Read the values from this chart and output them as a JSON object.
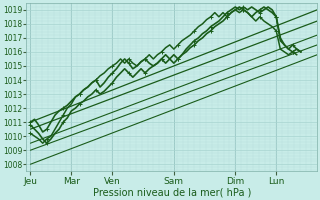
{
  "xlabel": "Pression niveau de la mer( hPa )",
  "bg_color": "#c8ece8",
  "grid_major_color": "#a8d4d0",
  "grid_minor_color": "#b8dedd",
  "line_color": "#1a5c1a",
  "ylim": [
    1007.5,
    1019.5
  ],
  "yticks": [
    1008,
    1009,
    1010,
    1011,
    1012,
    1013,
    1014,
    1015,
    1016,
    1017,
    1018,
    1019
  ],
  "n_days": 6,
  "day_labels": [
    "Jeu",
    "Mar",
    "Ven",
    "Sam",
    "Dim",
    "Lun"
  ],
  "day_x": [
    0.0,
    1.0,
    2.0,
    3.5,
    5.0,
    6.0
  ],
  "vline_x": [
    0.0,
    1.0,
    2.0,
    3.5,
    5.0,
    6.0
  ],
  "xlim": [
    -0.1,
    7.0
  ],
  "figsize": [
    3.2,
    2.0
  ],
  "dpi": 100,
  "smooth_lines": [
    {
      "x0": 0.0,
      "y0": 1011.0,
      "x1": 7.0,
      "y1": 1019.0,
      "lw": 0.9
    },
    {
      "x0": 0.0,
      "y0": 1010.5,
      "x1": 7.0,
      "y1": 1018.2,
      "lw": 0.9
    },
    {
      "x0": 0.0,
      "y0": 1009.5,
      "x1": 7.0,
      "y1": 1017.2,
      "lw": 0.8
    },
    {
      "x0": 0.0,
      "y0": 1009.0,
      "x1": 7.0,
      "y1": 1016.5,
      "lw": 0.8
    },
    {
      "x0": 0.0,
      "y0": 1008.0,
      "x1": 7.0,
      "y1": 1015.8,
      "lw": 0.8
    }
  ],
  "noisy_lines": [
    {
      "pts": [
        [
          0.0,
          1011.0
        ],
        [
          0.1,
          1011.2
        ],
        [
          0.2,
          1010.8
        ],
        [
          0.3,
          1010.3
        ],
        [
          0.4,
          1010.5
        ],
        [
          0.5,
          1011.0
        ],
        [
          0.6,
          1011.5
        ],
        [
          0.7,
          1011.8
        ],
        [
          0.8,
          1012.0
        ],
        [
          0.9,
          1012.2
        ],
        [
          1.0,
          1012.5
        ],
        [
          1.1,
          1012.8
        ],
        [
          1.2,
          1013.0
        ],
        [
          1.3,
          1013.3
        ],
        [
          1.4,
          1013.5
        ],
        [
          1.5,
          1013.8
        ],
        [
          1.6,
          1014.0
        ],
        [
          1.7,
          1013.5
        ],
        [
          1.8,
          1013.8
        ],
        [
          1.9,
          1014.2
        ],
        [
          2.0,
          1014.5
        ],
        [
          2.1,
          1014.8
        ],
        [
          2.2,
          1015.2
        ],
        [
          2.3,
          1015.5
        ],
        [
          2.4,
          1015.2
        ],
        [
          2.5,
          1014.8
        ],
        [
          2.6,
          1015.0
        ],
        [
          2.7,
          1015.3
        ],
        [
          2.8,
          1015.5
        ],
        [
          2.9,
          1015.2
        ],
        [
          3.0,
          1015.0
        ],
        [
          3.1,
          1015.2
        ],
        [
          3.2,
          1015.5
        ],
        [
          3.3,
          1015.8
        ],
        [
          3.4,
          1015.5
        ],
        [
          3.5,
          1015.2
        ],
        [
          3.6,
          1015.5
        ],
        [
          3.7,
          1015.8
        ],
        [
          3.8,
          1016.0
        ],
        [
          3.9,
          1016.3
        ],
        [
          4.0,
          1016.5
        ],
        [
          4.1,
          1016.8
        ],
        [
          4.2,
          1017.0
        ],
        [
          4.3,
          1017.3
        ],
        [
          4.4,
          1017.5
        ],
        [
          4.5,
          1017.8
        ],
        [
          4.6,
          1018.0
        ],
        [
          4.7,
          1018.2
        ],
        [
          4.8,
          1018.5
        ],
        [
          4.9,
          1018.8
        ],
        [
          5.0,
          1019.0
        ],
        [
          5.1,
          1019.2
        ],
        [
          5.2,
          1019.0
        ],
        [
          5.3,
          1018.8
        ],
        [
          5.4,
          1018.5
        ],
        [
          5.5,
          1018.8
        ],
        [
          5.6,
          1019.0
        ],
        [
          5.7,
          1019.2
        ],
        [
          5.8,
          1019.0
        ],
        [
          5.9,
          1018.8
        ],
        [
          6.0,
          1018.5
        ],
        [
          6.1,
          1017.0
        ],
        [
          6.2,
          1016.5
        ],
        [
          6.3,
          1016.2
        ],
        [
          6.4,
          1016.0
        ],
        [
          6.5,
          1016.2
        ],
        [
          6.6,
          1016.0
        ]
      ],
      "lw": 1.2,
      "marker": true
    },
    {
      "pts": [
        [
          0.0,
          1010.8
        ],
        [
          0.1,
          1010.5
        ],
        [
          0.2,
          1010.2
        ],
        [
          0.3,
          1009.8
        ],
        [
          0.4,
          1009.5
        ],
        [
          0.5,
          1009.8
        ],
        [
          0.6,
          1010.2
        ],
        [
          0.7,
          1010.5
        ],
        [
          0.8,
          1011.0
        ],
        [
          0.9,
          1011.3
        ],
        [
          1.0,
          1011.8
        ],
        [
          1.1,
          1012.0
        ],
        [
          1.2,
          1012.3
        ],
        [
          1.3,
          1012.5
        ],
        [
          1.4,
          1012.8
        ],
        [
          1.5,
          1013.0
        ],
        [
          1.6,
          1013.3
        ],
        [
          1.7,
          1013.0
        ],
        [
          1.8,
          1013.2
        ],
        [
          1.9,
          1013.5
        ],
        [
          2.0,
          1013.8
        ],
        [
          2.1,
          1014.2
        ],
        [
          2.2,
          1014.5
        ],
        [
          2.3,
          1014.8
        ],
        [
          2.4,
          1014.5
        ],
        [
          2.5,
          1014.2
        ],
        [
          2.6,
          1014.5
        ],
        [
          2.7,
          1014.8
        ],
        [
          2.8,
          1014.5
        ],
        [
          2.9,
          1014.8
        ],
        [
          3.0,
          1015.0
        ],
        [
          3.1,
          1015.2
        ],
        [
          3.2,
          1015.5
        ],
        [
          3.3,
          1015.2
        ],
        [
          3.4,
          1015.5
        ],
        [
          3.5,
          1015.8
        ],
        [
          3.6,
          1015.5
        ],
        [
          3.7,
          1015.8
        ],
        [
          3.8,
          1016.2
        ],
        [
          3.9,
          1016.5
        ],
        [
          4.0,
          1016.8
        ],
        [
          4.1,
          1017.0
        ],
        [
          4.2,
          1017.3
        ],
        [
          4.3,
          1017.5
        ],
        [
          4.4,
          1017.8
        ],
        [
          4.5,
          1018.0
        ],
        [
          4.6,
          1018.2
        ],
        [
          4.7,
          1018.5
        ],
        [
          4.8,
          1018.8
        ],
        [
          4.9,
          1019.0
        ],
        [
          5.0,
          1019.2
        ],
        [
          5.1,
          1019.0
        ],
        [
          5.2,
          1019.2
        ],
        [
          5.3,
          1019.0
        ],
        [
          5.4,
          1019.2
        ],
        [
          5.5,
          1019.0
        ],
        [
          5.6,
          1018.8
        ],
        [
          5.7,
          1019.0
        ],
        [
          5.8,
          1019.2
        ],
        [
          5.9,
          1019.0
        ],
        [
          6.0,
          1018.5
        ],
        [
          6.1,
          1016.8
        ],
        [
          6.2,
          1016.5
        ],
        [
          6.3,
          1016.2
        ],
        [
          6.4,
          1016.5
        ],
        [
          6.5,
          1016.2
        ],
        [
          6.6,
          1016.0
        ]
      ],
      "lw": 1.2,
      "marker": true
    },
    {
      "pts": [
        [
          0.0,
          1010.2
        ],
        [
          0.1,
          1010.0
        ],
        [
          0.2,
          1009.8
        ],
        [
          0.3,
          1009.5
        ],
        [
          0.4,
          1009.8
        ],
        [
          0.5,
          1010.0
        ],
        [
          0.6,
          1010.5
        ],
        [
          0.7,
          1011.0
        ],
        [
          0.8,
          1011.5
        ],
        [
          0.9,
          1012.0
        ],
        [
          1.0,
          1012.3
        ],
        [
          1.1,
          1012.8
        ],
        [
          1.2,
          1013.0
        ],
        [
          1.3,
          1013.3
        ],
        [
          1.4,
          1013.5
        ],
        [
          1.5,
          1013.8
        ],
        [
          1.6,
          1014.0
        ],
        [
          1.7,
          1014.3
        ],
        [
          1.8,
          1014.5
        ],
        [
          1.9,
          1014.8
        ],
        [
          2.0,
          1015.0
        ],
        [
          2.1,
          1015.2
        ],
        [
          2.2,
          1015.5
        ],
        [
          2.3,
          1015.2
        ],
        [
          2.4,
          1015.5
        ],
        [
          2.5,
          1015.2
        ],
        [
          2.6,
          1015.0
        ],
        [
          2.7,
          1015.3
        ],
        [
          2.8,
          1015.5
        ],
        [
          2.9,
          1015.8
        ],
        [
          3.0,
          1015.5
        ],
        [
          3.1,
          1015.8
        ],
        [
          3.2,
          1016.0
        ],
        [
          3.3,
          1016.3
        ],
        [
          3.4,
          1016.5
        ],
        [
          3.5,
          1016.2
        ],
        [
          3.6,
          1016.5
        ],
        [
          3.7,
          1016.8
        ],
        [
          3.8,
          1017.0
        ],
        [
          3.9,
          1017.2
        ],
        [
          4.0,
          1017.5
        ],
        [
          4.1,
          1017.8
        ],
        [
          4.2,
          1018.0
        ],
        [
          4.3,
          1018.3
        ],
        [
          4.4,
          1018.5
        ],
        [
          4.5,
          1018.8
        ],
        [
          4.6,
          1018.5
        ],
        [
          4.7,
          1018.8
        ],
        [
          4.8,
          1018.5
        ],
        [
          4.9,
          1018.8
        ],
        [
          5.0,
          1019.0
        ],
        [
          5.1,
          1018.8
        ],
        [
          5.2,
          1019.0
        ],
        [
          5.3,
          1018.8
        ],
        [
          5.4,
          1018.5
        ],
        [
          5.5,
          1018.2
        ],
        [
          5.6,
          1018.5
        ],
        [
          5.7,
          1018.2
        ],
        [
          5.8,
          1018.0
        ],
        [
          5.9,
          1017.8
        ],
        [
          6.0,
          1017.5
        ],
        [
          6.1,
          1016.2
        ],
        [
          6.2,
          1016.0
        ],
        [
          6.3,
          1015.8
        ],
        [
          6.4,
          1016.0
        ],
        [
          6.5,
          1015.8
        ]
      ],
      "lw": 1.1,
      "marker": true
    }
  ]
}
